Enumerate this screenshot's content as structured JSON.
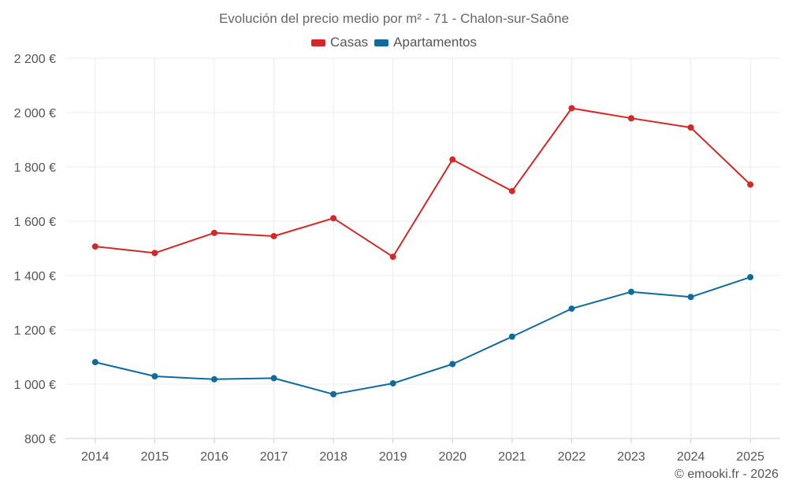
{
  "chart_data": {
    "type": "line",
    "title": "Evolución del precio medio por m² - 71 - Chalon-sur-Saône",
    "categories": [
      "2014",
      "2015",
      "2016",
      "2017",
      "2018",
      "2019",
      "2020",
      "2021",
      "2022",
      "2023",
      "2024",
      "2025"
    ],
    "series": [
      {
        "name": "Casas",
        "color": "#d62728",
        "values": [
          1507,
          1483,
          1557,
          1545,
          1611,
          1469,
          1827,
          1711,
          2016,
          1979,
          1945,
          1735
        ]
      },
      {
        "name": "Apartamentos",
        "color": "#0f6b9e",
        "values": [
          1081,
          1029,
          1018,
          1022,
          963,
          1003,
          1074,
          1175,
          1278,
          1340,
          1321,
          1394
        ]
      }
    ],
    "ylim": [
      800,
      2200
    ],
    "y_ticks": [
      800,
      1000,
      1200,
      1400,
      1600,
      1800,
      2000,
      2200
    ],
    "y_tick_labels": [
      "800 €",
      "1 000 €",
      "1 200 €",
      "1 400 €",
      "1 600 €",
      "1 800 €",
      "2 000 €",
      "2 200 €"
    ],
    "xlabel": "",
    "ylabel": "",
    "grid": true,
    "legend_position": "top-center"
  },
  "legend": {
    "casas_label": "Casas",
    "apartamentos_label": "Apartamentos"
  },
  "credit": "© emooki.fr - 2026"
}
